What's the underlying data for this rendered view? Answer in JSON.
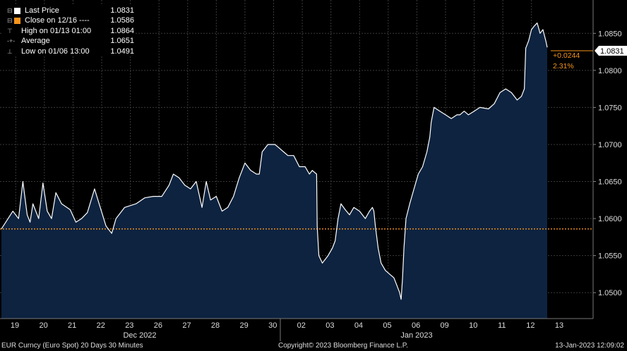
{
  "legend": {
    "last_price": {
      "label": "Last Price",
      "value": "1.0831",
      "color": "#ffffff"
    },
    "close": {
      "label": "Close on 12/16 ----",
      "value": "1.0586",
      "color": "#f7941d"
    },
    "high": {
      "label": "High on 01/13 01:00",
      "value": "1.0864"
    },
    "average": {
      "label": "Average",
      "value": "1.0651"
    },
    "low": {
      "label": "Low on 01/06 13:00",
      "value": "1.0491"
    }
  },
  "footer": {
    "left": "EUR Curncy (Euro Spot) 20 Days 30 Minutes",
    "center": "Copyright© 2023 Bloomberg Finance L.P.",
    "right": "13-Jan-2023 12:09:02"
  },
  "chart_data": {
    "type": "area",
    "x_tick_labels": [
      "19",
      "20",
      "21",
      "22",
      "23",
      "26",
      "27",
      "28",
      "29",
      "30",
      "02",
      "03",
      "04",
      "05",
      "06",
      "09",
      "10",
      "11",
      "12",
      "13"
    ],
    "month_labels": [
      "Dec 2022",
      "Jan 2023"
    ],
    "y_tick_labels": [
      "1.0500",
      "1.0550",
      "1.0600",
      "1.0650",
      "1.0700",
      "1.0750",
      "1.0800",
      "1.0850"
    ],
    "ylim": [
      1.0465,
      1.0895
    ],
    "reference_line": {
      "value": 1.0586,
      "color": "#f7941d",
      "style": "dotted"
    },
    "last_value_label": "1.0831",
    "change_label": "+0.0244",
    "change_pct_label": "2.31%",
    "colors": {
      "line": "#ffffff",
      "fill": "#0d2340",
      "grid": "#3a3a3a",
      "change": "#f7941d"
    },
    "series": [
      {
        "values": [
          [
            0.0,
            1.0586
          ],
          [
            0.4,
            1.061
          ],
          [
            0.6,
            1.06
          ],
          [
            0.75,
            1.065
          ],
          [
            0.9,
            1.0605
          ],
          [
            1.0,
            1.0595
          ],
          [
            1.1,
            1.062
          ],
          [
            1.3,
            1.06
          ],
          [
            1.45,
            1.0648
          ],
          [
            1.6,
            1.061
          ],
          [
            1.75,
            1.06
          ],
          [
            1.9,
            1.0635
          ],
          [
            2.1,
            1.062
          ],
          [
            2.4,
            1.0612
          ],
          [
            2.6,
            1.0595
          ],
          [
            2.8,
            1.06
          ],
          [
            3.0,
            1.0608
          ],
          [
            3.25,
            1.064
          ],
          [
            3.45,
            1.0615
          ],
          [
            3.65,
            1.059
          ],
          [
            3.85,
            1.058
          ],
          [
            4.0,
            1.06
          ],
          [
            4.3,
            1.0615
          ],
          [
            4.7,
            1.062
          ],
          [
            5.0,
            1.0628
          ],
          [
            5.3,
            1.063
          ],
          [
            5.6,
            1.063
          ],
          [
            5.85,
            1.0645
          ],
          [
            6.0,
            1.066
          ],
          [
            6.2,
            1.0655
          ],
          [
            6.4,
            1.0645
          ],
          [
            6.6,
            1.064
          ],
          [
            6.8,
            1.065
          ],
          [
            7.0,
            1.0615
          ],
          [
            7.15,
            1.065
          ],
          [
            7.3,
            1.0625
          ],
          [
            7.5,
            1.063
          ],
          [
            7.7,
            1.061
          ],
          [
            7.9,
            1.0615
          ],
          [
            8.1,
            1.063
          ],
          [
            8.3,
            1.0655
          ],
          [
            8.5,
            1.0675
          ],
          [
            8.7,
            1.0665
          ],
          [
            8.9,
            1.066
          ],
          [
            9.0,
            1.066
          ],
          [
            9.1,
            1.069
          ],
          [
            9.3,
            1.07
          ],
          [
            9.55,
            1.07
          ],
          [
            9.7,
            1.0695
          ],
          [
            9.85,
            1.069
          ],
          [
            10.0,
            1.0685
          ],
          [
            10.2,
            1.0685
          ],
          [
            10.4,
            1.067
          ],
          [
            10.6,
            1.067
          ],
          [
            10.75,
            1.066
          ],
          [
            10.85,
            1.0665
          ],
          [
            11.0,
            1.066
          ],
          [
            11.02,
            1.059
          ],
          [
            11.08,
            1.055
          ],
          [
            11.2,
            1.054
          ],
          [
            11.4,
            1.055
          ],
          [
            11.55,
            1.056
          ],
          [
            11.65,
            1.057
          ],
          [
            11.75,
            1.06
          ],
          [
            11.85,
            1.062
          ],
          [
            12.0,
            1.0612
          ],
          [
            12.15,
            1.0605
          ],
          [
            12.3,
            1.0615
          ],
          [
            12.5,
            1.061
          ],
          [
            12.7,
            1.06
          ],
          [
            12.85,
            1.061
          ],
          [
            12.95,
            1.0615
          ],
          [
            13.0,
            1.061
          ],
          [
            13.05,
            1.059
          ],
          [
            13.15,
            1.056
          ],
          [
            13.25,
            1.054
          ],
          [
            13.4,
            1.053
          ],
          [
            13.55,
            1.0525
          ],
          [
            13.7,
            1.052
          ],
          [
            13.8,
            1.051
          ],
          [
            13.9,
            1.05
          ],
          [
            13.95,
            1.0491
          ],
          [
            14.0,
            1.052
          ],
          [
            14.05,
            1.056
          ],
          [
            14.12,
            1.06
          ],
          [
            14.25,
            1.062
          ],
          [
            14.4,
            1.064
          ],
          [
            14.55,
            1.066
          ],
          [
            14.7,
            1.067
          ],
          [
            14.85,
            1.069
          ],
          [
            14.95,
            1.071
          ],
          [
            15.0,
            1.073
          ],
          [
            15.1,
            1.075
          ],
          [
            15.3,
            1.0745
          ],
          [
            15.5,
            1.074
          ],
          [
            15.7,
            1.0735
          ],
          [
            15.9,
            1.074
          ],
          [
            16.0,
            1.074
          ],
          [
            16.15,
            1.0745
          ],
          [
            16.3,
            1.074
          ],
          [
            16.5,
            1.0745
          ],
          [
            16.7,
            1.075
          ],
          [
            17.0,
            1.0748
          ],
          [
            17.2,
            1.0755
          ],
          [
            17.4,
            1.077
          ],
          [
            17.6,
            1.0775
          ],
          [
            17.8,
            1.077
          ],
          [
            18.0,
            1.076
          ],
          [
            18.15,
            1.0765
          ],
          [
            18.25,
            1.0775
          ],
          [
            18.3,
            1.083
          ],
          [
            18.4,
            1.084
          ],
          [
            18.5,
            1.0855
          ],
          [
            18.6,
            1.086
          ],
          [
            18.7,
            1.0864
          ],
          [
            18.8,
            1.085
          ],
          [
            18.9,
            1.0855
          ],
          [
            19.0,
            1.084
          ],
          [
            19.05,
            1.0831
          ]
        ]
      }
    ]
  }
}
